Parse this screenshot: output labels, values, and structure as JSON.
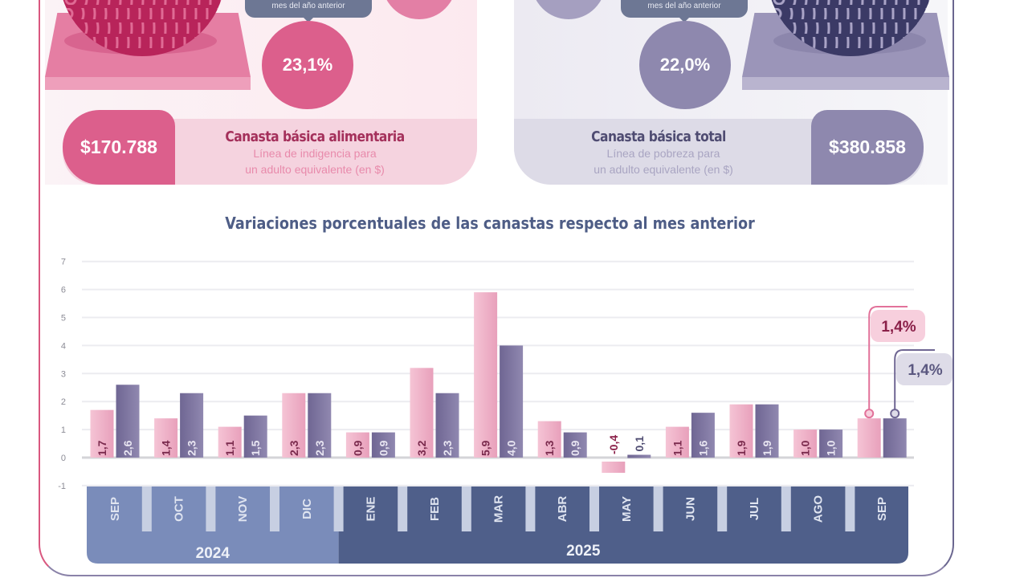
{
  "top": {
    "left": {
      "tooltip": "mes del año anterior",
      "yoy_variation": "23,1%",
      "value": "$170.788",
      "title": "Canasta básica alimentaria",
      "subtitle_line1": "Línea de indigencia para",
      "subtitle_line2": "un adulto equivalente (en $)"
    },
    "right": {
      "tooltip": "mes del año anterior",
      "yoy_variation": "22,0%",
      "value": "$380.858",
      "title": "Canasta básica total",
      "subtitle_line1": "Línea de pobreza para",
      "subtitle_line2": "un adulto equivalente (en $)"
    }
  },
  "colors": {
    "cba": "#e9a9c0",
    "cbt": "#7d739d",
    "cba_dark": "#d9577f",
    "cbt_dark": "#8e88ae",
    "year_2024": "#7a8cba",
    "year_2025": "#4f5f8a"
  },
  "chart_data": {
    "type": "bar",
    "title": "Variaciones porcentuales de las canastas respecto al mes anterior",
    "xlabel": "",
    "ylabel": "",
    "ylim": [
      -1,
      7
    ],
    "yticks": [
      "7",
      "6",
      "5",
      "4",
      "3",
      "2",
      "1",
      "0",
      "-1"
    ],
    "grid": true,
    "categories": [
      "SEP",
      "OCT",
      "NOV",
      "DIC",
      "ENE",
      "FEB",
      "MAR",
      "ABR",
      "MAY",
      "JUN",
      "JUL",
      "AGO",
      "SEP"
    ],
    "years": [
      {
        "label": "2024",
        "months": 4
      },
      {
        "label": "2025",
        "months": 9
      }
    ],
    "series": [
      {
        "name": "Canasta básica alimentaria",
        "values": [
          1.7,
          1.4,
          1.1,
          2.3,
          0.9,
          3.2,
          5.9,
          1.3,
          -0.4,
          1.1,
          1.9,
          1.0,
          1.4
        ],
        "labels": [
          "1,7",
          "1,4",
          "1,1",
          "2,3",
          "0,9",
          "3,2",
          "5,9",
          "1,3",
          "-0,4",
          "1,1",
          "1,9",
          "1,0",
          ""
        ]
      },
      {
        "name": "Canasta básica total",
        "values": [
          2.6,
          2.3,
          1.5,
          2.3,
          0.9,
          2.3,
          4.0,
          0.9,
          0.1,
          1.6,
          1.9,
          1.0,
          1.4
        ],
        "labels": [
          "2,6",
          "2,3",
          "1,5",
          "2,3",
          "0,9",
          "2,3",
          "4,0",
          "0,9",
          "0,1",
          "1,6",
          "1,9",
          "1,0",
          ""
        ]
      }
    ],
    "callouts": [
      "1,4%",
      "1,4%"
    ]
  }
}
